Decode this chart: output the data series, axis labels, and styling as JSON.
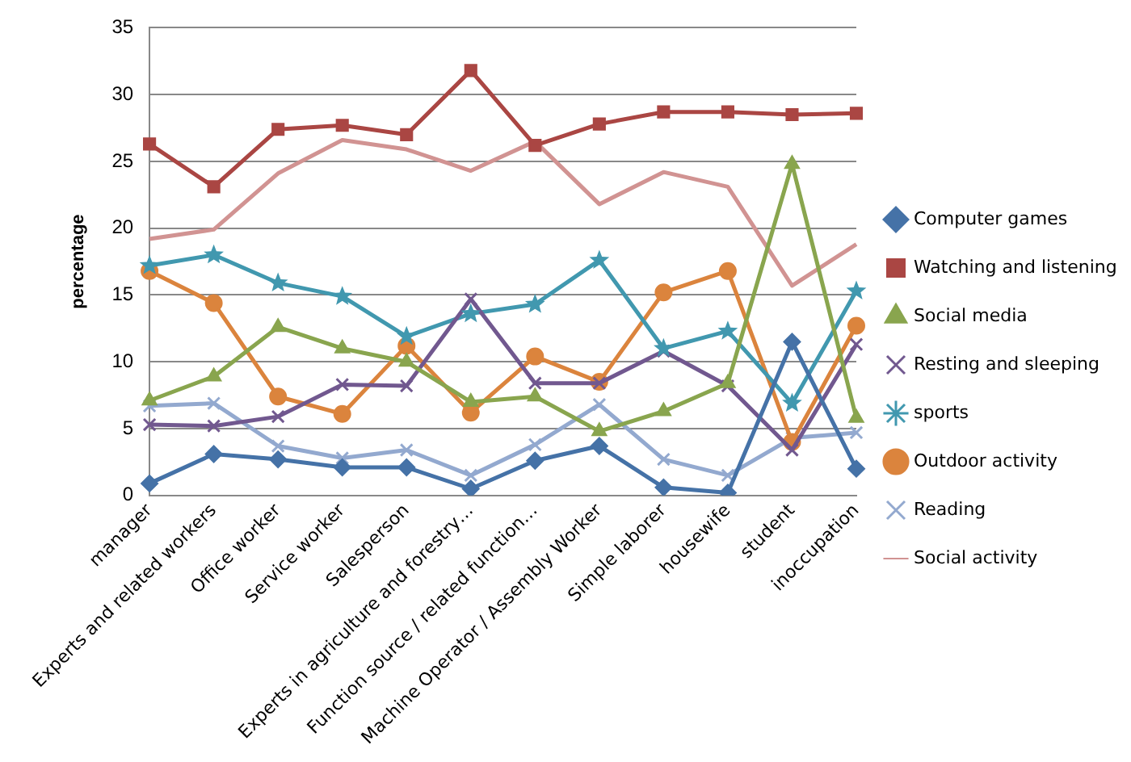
{
  "chart_data": {
    "type": "line",
    "ylabel": "percentage",
    "categories": [
      "manager",
      "Experts and related workers",
      "Office worker",
      "Service worker",
      "Salesperson",
      "Experts in agriculture and forestry…",
      "Function source / related function…",
      "Machine Operator / Assembly Worker",
      "Simple laborer",
      "housewife",
      "student",
      "inoccupation"
    ],
    "series": [
      {
        "name": "Computer games",
        "color": "#4572a7",
        "marker": "diamond",
        "values": [
          0.9,
          3.1,
          2.7,
          2.1,
          2.1,
          0.5,
          2.6,
          3.7,
          0.6,
          0.2,
          11.5,
          2.0
        ]
      },
      {
        "name": "Watching and listening",
        "color": "#aa4643",
        "marker": "square",
        "values": [
          26.3,
          23.1,
          27.4,
          27.7,
          27.0,
          31.8,
          26.2,
          27.8,
          28.7,
          28.7,
          28.5,
          28.6
        ]
      },
      {
        "name": "Social media",
        "color": "#89a54e",
        "marker": "triangle",
        "values": [
          7.1,
          8.9,
          12.6,
          11.0,
          10.0,
          7.0,
          7.4,
          4.8,
          6.3,
          8.4,
          24.8,
          5.8
        ]
      },
      {
        "name": "Resting and sleeping",
        "color": "#71588f",
        "marker": "cross",
        "values": [
          5.3,
          5.2,
          5.9,
          8.3,
          8.2,
          14.7,
          8.4,
          8.4,
          10.8,
          8.2,
          3.4,
          11.3
        ]
      },
      {
        "name": "sports",
        "color": "#4198af",
        "marker": "star",
        "values": [
          17.2,
          18.0,
          15.9,
          14.9,
          11.9,
          13.6,
          14.3,
          17.6,
          11.0,
          12.3,
          6.9,
          15.3
        ]
      },
      {
        "name": "Outdoor activity",
        "color": "#db843d",
        "marker": "circle",
        "values": [
          16.8,
          14.4,
          7.4,
          6.1,
          11.2,
          6.2,
          10.4,
          8.5,
          15.2,
          16.8,
          4.0,
          12.7
        ]
      },
      {
        "name": "Reading",
        "color": "#93a9cf",
        "marker": "cross",
        "values": [
          6.7,
          6.9,
          3.7,
          2.8,
          3.4,
          1.5,
          3.8,
          6.8,
          2.7,
          1.5,
          4.3,
          4.7
        ]
      },
      {
        "name": "Social activity",
        "color": "#d19392",
        "marker": "none",
        "values": [
          19.2,
          19.9,
          24.1,
          26.6,
          25.9,
          24.3,
          26.5,
          21.8,
          24.2,
          23.1,
          15.7,
          18.8
        ]
      }
    ],
    "ylim": [
      0,
      35
    ],
    "yticks": [
      0,
      5,
      10,
      15,
      20,
      25,
      30,
      35
    ],
    "grid": "y",
    "legend": "right"
  }
}
